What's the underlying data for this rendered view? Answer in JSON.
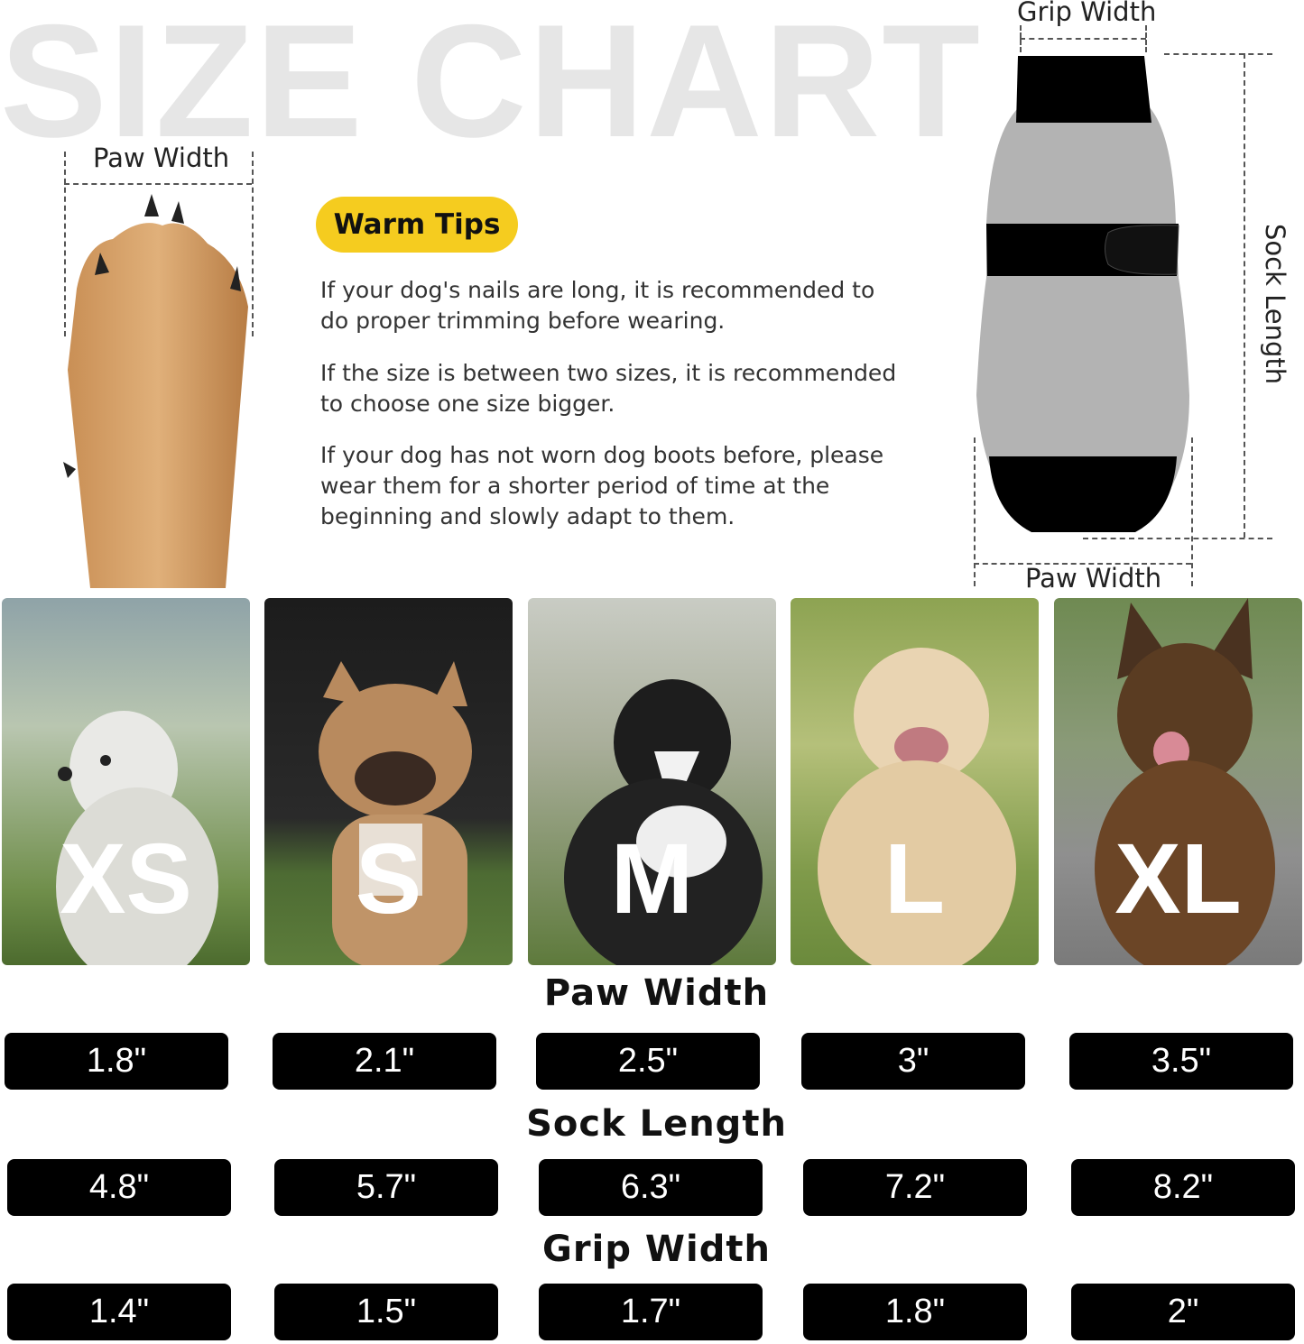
{
  "title": "SIZE CHART",
  "paw_diagram": {
    "label": "Paw Width"
  },
  "warm_tips": {
    "badge": "Warm Tips",
    "tips": [
      [
        "If your dog's nails are long, it is recommended to",
        "do proper trimming before wearing."
      ],
      [
        "If the size is between two sizes, it is recommended",
        "to choose one size bigger."
      ],
      [
        "If your dog has not worn dog boots before, please",
        "wear them for a shorter period of time at the",
        "beginning and slowly adapt to them."
      ]
    ]
  },
  "sock_diagram": {
    "grip_label": "Grip Width",
    "length_label": "Sock Length",
    "paw_label": "Paw Width"
  },
  "sizes": [
    "XS",
    "S",
    "M",
    "L",
    "XL"
  ],
  "measurements": [
    {
      "heading": "Paw Width",
      "values": [
        "1.8\"",
        "2.1\"",
        "2.5\"",
        "3\"",
        "3.5\""
      ]
    },
    {
      "heading": "Sock Length",
      "values": [
        "4.8\"",
        "5.7\"",
        "6.3\"",
        "7.2\"",
        "8.2\""
      ]
    },
    {
      "heading": "Grip Width",
      "values": [
        "1.4\"",
        "1.5\"",
        "1.7\"",
        "1.8\"",
        "2\""
      ]
    }
  ],
  "colors": {
    "badge": "#f5cc1f",
    "title": "#e6e6e6",
    "sock_body": "#b3b3b3",
    "sock_trim": "#000000"
  }
}
